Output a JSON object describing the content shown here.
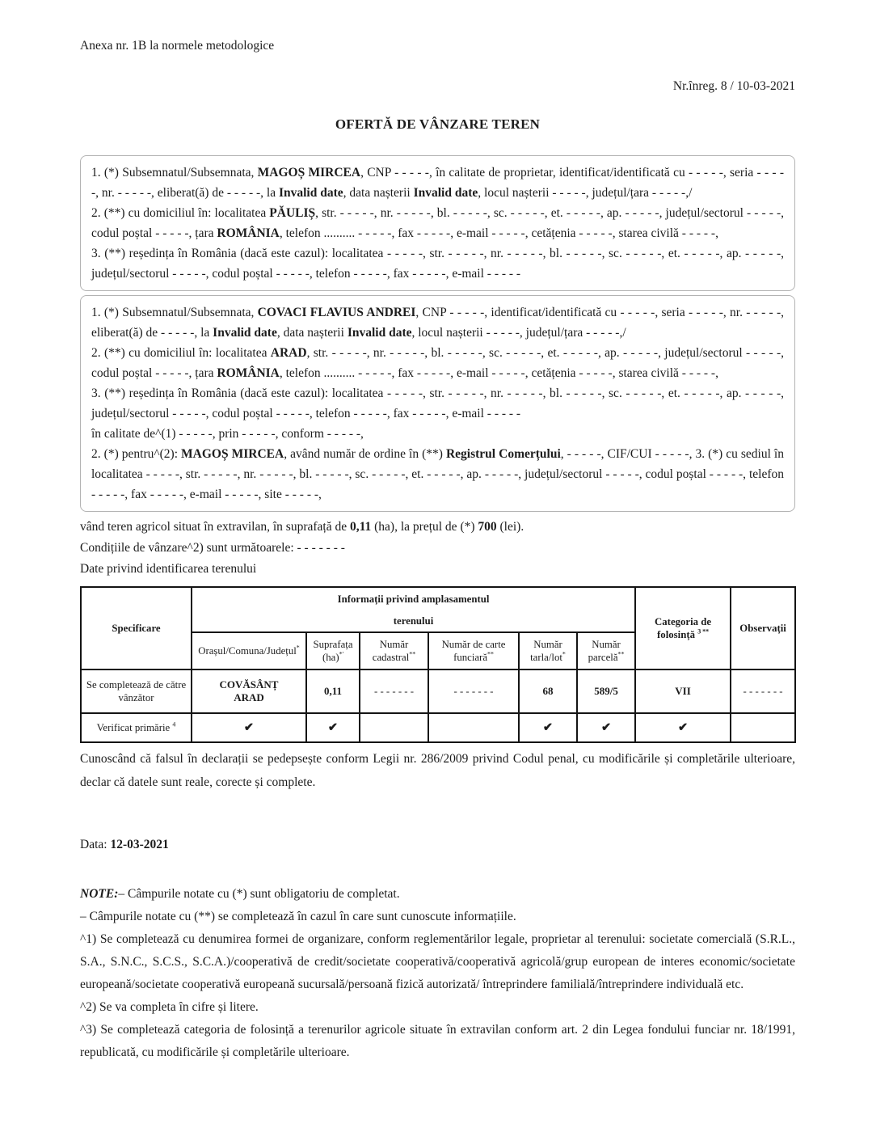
{
  "page": {
    "annex_note": "Anexa nr. 1B la normele metodologice",
    "registration": "Nr.înreg. 8 / 10-03-2021",
    "title": "OFERTĂ DE VÂNZARE TEREN"
  },
  "box1": {
    "p1": [
      {
        "t": "1. (*) Subsemnatul/Subsemnata, "
      },
      {
        "t": "MAGOȘ MIRCEA",
        "b": true
      },
      {
        "t": ", CNP - - - - -, în calitate de proprietar, identificat/identificată cu - - - - -, seria - - - - -, nr. - - - - -, eliberat(ă) de - - - - -, la "
      },
      {
        "t": "Invalid date",
        "b": true
      },
      {
        "t": ", data nașterii "
      },
      {
        "t": "Invalid date",
        "b": true
      },
      {
        "t": ", locul nașterii - - - - -, județul/țara - - - - -,/"
      }
    ],
    "p2": [
      {
        "t": "2. (**) cu domiciliul în: localitatea "
      },
      {
        "t": "PĂULIȘ",
        "b": true
      },
      {
        "t": ", str. - - - - -, nr. - - - - -, bl. - - - - -, sc. - - - - -, et. - - - - -, ap. - - - - -, județul/sectorul - - - - -, codul poștal - - - - -, țara "
      },
      {
        "t": "ROMÂNIA",
        "b": true
      },
      {
        "t": ", telefon .......... - - - - -, fax - - - - -, e-mail - - - - -, cetățenia - - - - -, starea civilă - - - - -,"
      }
    ],
    "p3": [
      {
        "t": "3. (**) reședința în România (dacă este cazul): localitatea - - - - -, str. - - - - -, nr. - - - - -, bl. - - - - -, sc. - - - - -, et. - - - - -, ap. - - - - -, județul/sectorul - - - - -, codul poștal - - - - -, telefon - - - - -, fax - - - - -, e-mail - - - - -"
      }
    ]
  },
  "box2": {
    "p1": [
      {
        "t": "1. (*) Subsemnatul/Subsemnata, "
      },
      {
        "t": "COVACI FLAVIUS ANDREI",
        "b": true
      },
      {
        "t": ", CNP - - - - -, identificat/identificată cu - - - - -, seria - - - - -, nr. - - - - -, eliberat(ă) de - - - - -, la "
      },
      {
        "t": "Invalid date",
        "b": true
      },
      {
        "t": ", data nașterii "
      },
      {
        "t": "Invalid date",
        "b": true
      },
      {
        "t": ", locul nașterii - - - - -, județul/țara - - - - -,/"
      }
    ],
    "p2": [
      {
        "t": "2. (**) cu domiciliul în: localitatea "
      },
      {
        "t": "ARAD",
        "b": true
      },
      {
        "t": ", str. - - - - -, nr. - - - - -, bl. - - - - -, sc. - - - - -, et. - - - - -, ap. - - - - -, județul/sectorul - - - - -, codul poștal - - - - -, țara "
      },
      {
        "t": "ROMÂNIA",
        "b": true
      },
      {
        "t": ", telefon .......... - - - - -, fax - - - - -, e-mail - - - - -, cetățenia - - - - -, starea civilă - - - - -,"
      }
    ],
    "p3": [
      {
        "t": "3. (**) reședința în România (dacă este cazul): localitatea - - - - -, str. - - - - -, nr. - - - - -, bl. - - - - -, sc. - - - - -, et. - - - - -, ap. - - - - -, județul/sectorul - - - - -, codul poștal - - - - -, telefon - - - - -, fax - - - - -, e-mail - - - - -"
      }
    ],
    "p4": [
      {
        "t": "în calitate de^(1) - - - - -, prin - - - - -, conform - - - - -,"
      }
    ],
    "p5": [
      {
        "t": "2. (*) pentru^(2): "
      },
      {
        "t": "MAGOȘ MIRCEA",
        "b": true
      },
      {
        "t": ", având număr de ordine în (**) "
      },
      {
        "t": "Registrul Comerțului",
        "b": true
      },
      {
        "t": ", - - - - -, CIF/CUI - - - - -, 3. (*) cu sediul în localitatea - - - - -, str. - - - - -, nr. - - - - -, bl. - - - - -, sc. - - - - -, et. - - - - -, ap. - - - - -, județul/sectorul - - - - -, codul poștal - - - - -, telefon - - - - -, fax - - - - -, e-mail - - - - -, site - - - - -,"
      }
    ]
  },
  "offer": {
    "sale_line": [
      {
        "t": "vând teren agricol situat în extravilan, în suprafață de "
      },
      {
        "t": "0,11",
        "b": true
      },
      {
        "t": " (ha), la prețul de (*) "
      },
      {
        "t": "700",
        "b": true
      },
      {
        "t": " (lei)."
      }
    ],
    "conditions_line": "Condițiile de vânzare^2) sunt următoarele: - - - - - - -",
    "land_id_line": "Date privind identificarea terenului"
  },
  "table": {
    "header": {
      "specificare": "Specificare",
      "group_line1": "Informații privind amplasamentul",
      "group_line2": "terenului",
      "sub": [
        {
          "label": "Orașul/Comuna/Județul",
          "sup": "*"
        },
        {
          "label": "Suprafața (ha)",
          "sup": "*'"
        },
        {
          "label": "Număr cadastral",
          "sup": "**"
        },
        {
          "label": "Număr de carte funciară",
          "sup": "**"
        },
        {
          "label": "Număr tarla/lot",
          "sup": "*"
        },
        {
          "label": "Număr parcelă",
          "sup": "**"
        }
      ],
      "categoria_label": "Categoria de folosință",
      "categoria_sup": "3 **",
      "observatii": "Observații"
    },
    "row_seller": {
      "label": "Se completează de către vânzător",
      "oras_line1": "COVĂSÂNȚ",
      "oras_line2": "ARAD",
      "suprafata": "0,11",
      "cadastral": "- - - - - - -",
      "carte_funciara": "- - - - - - -",
      "tarla": "68",
      "parcela": "589/5",
      "categoria": "VII",
      "observatii": "- - - - - - -"
    },
    "row_verificat": {
      "label": "Verificat primărie",
      "label_sup": "4",
      "checks": [
        "✔",
        "✔",
        "",
        "",
        "✔",
        "✔",
        "✔",
        ""
      ]
    }
  },
  "declaration": "Cunoscând că falsul în declarații se pedepsește conform Legii nr. 286/2009 privind Codul penal, cu modificările și completările ulterioare, declar că datele sunt reale, corecte și complete.",
  "date_block": {
    "label": "Data: ",
    "value": "12-03-2021"
  },
  "notes": {
    "n1": [
      {
        "t": "NOTE:",
        "b": true,
        "i": true
      },
      {
        "t": "– Câmpurile notate cu (*) sunt obligatoriu de completat."
      }
    ],
    "n2": "– Câmpurile notate cu (**) se completează în cazul în care sunt cunoscute informațiile.",
    "f1": "^1) Se completează cu denumirea formei de organizare, conform reglementărilor legale, proprietar al terenului: societate comercială (S.R.L., S.A., S.N.C., S.C.S., S.C.A.)/cooperativă de credit/societate cooperativă/cooperativă agricolă/grup european de interes economic/societate europeană/societate cooperativă europeană sucursală/persoană fizică autorizată/ întreprindere familială/întreprindere individuală etc.",
    "f2": "^2) Se va completa în cifre și litere.",
    "f3": "^3) Se completează categoria de folosință a terenurilor agricole situate în extravilan conform art. 2 din Legea fondului funciar nr. 18/1991, republicată, cu modificările și completările ulterioare."
  }
}
